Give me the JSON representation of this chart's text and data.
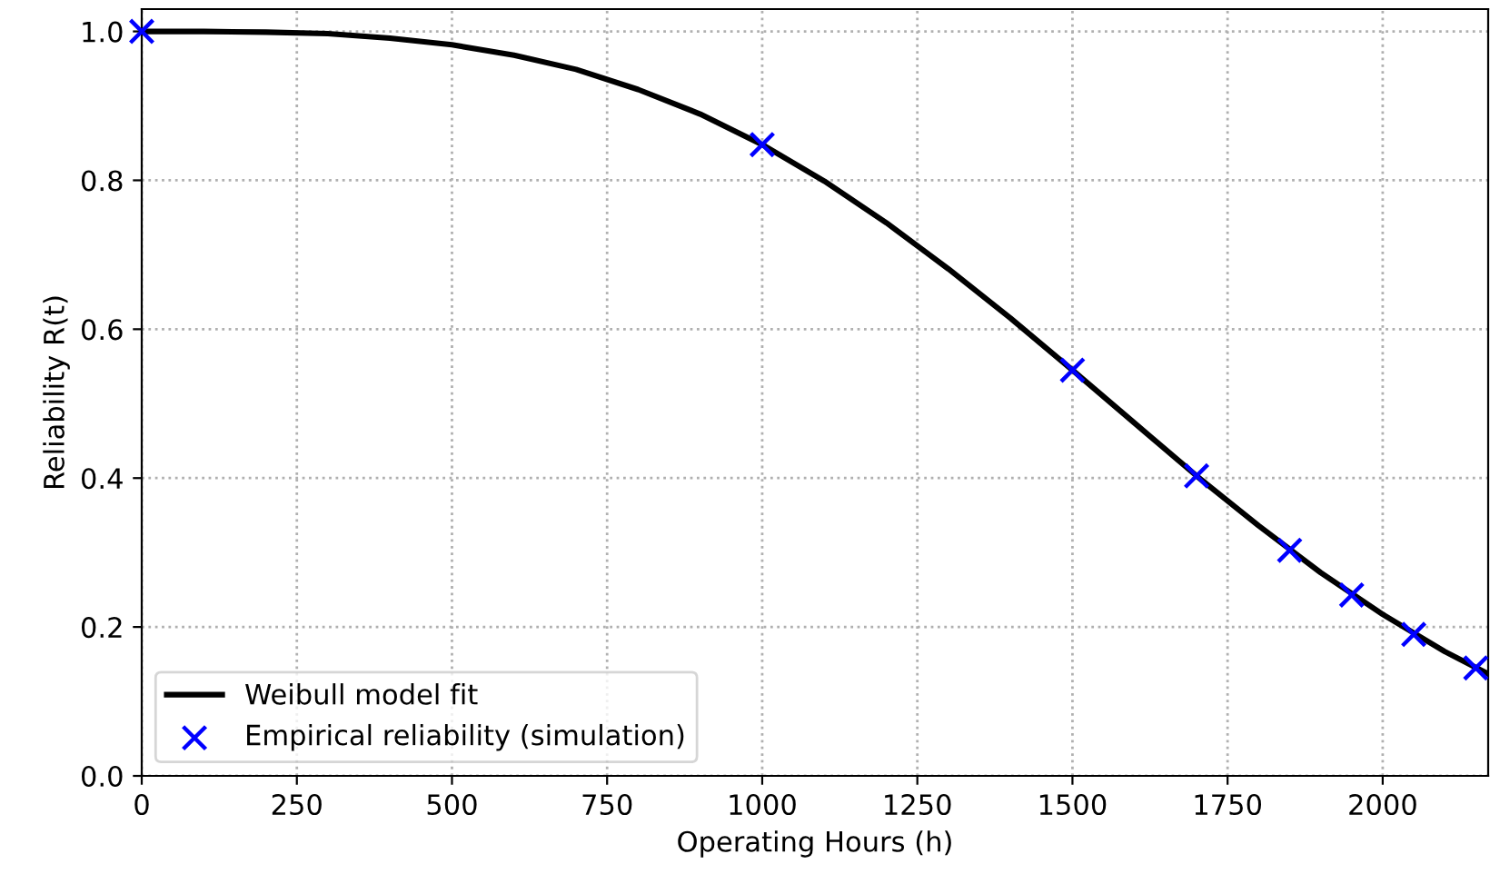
{
  "chart_data": {
    "type": "line",
    "xlabel": "Operating Hours (h)",
    "ylabel": "Reliability R(t)",
    "xlim": [
      0,
      2170
    ],
    "xticks": [
      0,
      250,
      500,
      750,
      1000,
      1250,
      1500,
      1750,
      2000
    ],
    "ylim": [
      0,
      1.03
    ],
    "yticks": [
      {
        "value": 0,
        "label": "0.0"
      },
      0.2,
      0.4,
      0.6,
      0.8,
      {
        "value": 1,
        "label": "1.0"
      }
    ],
    "grid": true,
    "legend": "bottom left",
    "series": [
      {
        "name": "Weibull model fit",
        "type": "line",
        "color": "#000000",
        "marker": "none",
        "line_style": "solid",
        "x": [
          0,
          100,
          200,
          300,
          400,
          500,
          600,
          700,
          800,
          900,
          1000,
          1100,
          1200,
          1300,
          1400,
          1500,
          1600,
          1700,
          1800,
          1900,
          2000,
          2100,
          2170
        ],
        "values": [
          1.0,
          1.0,
          0.999,
          0.997,
          0.991,
          0.982,
          0.968,
          0.949,
          0.922,
          0.889,
          0.848,
          0.799,
          0.743,
          0.681,
          0.615,
          0.545,
          0.474,
          0.403,
          0.336,
          0.273,
          0.217,
          0.167,
          0.137
        ]
      },
      {
        "name": "Empirical reliability (simulation)",
        "type": "scatter",
        "color": "#0000ff",
        "marker": "cross",
        "x": [
          0,
          1000,
          1500,
          1700,
          1850,
          1950,
          2050,
          2150
        ],
        "values": [
          1.0,
          0.848,
          0.545,
          0.403,
          0.303,
          0.243,
          0.19,
          0.145
        ]
      }
    ]
  }
}
